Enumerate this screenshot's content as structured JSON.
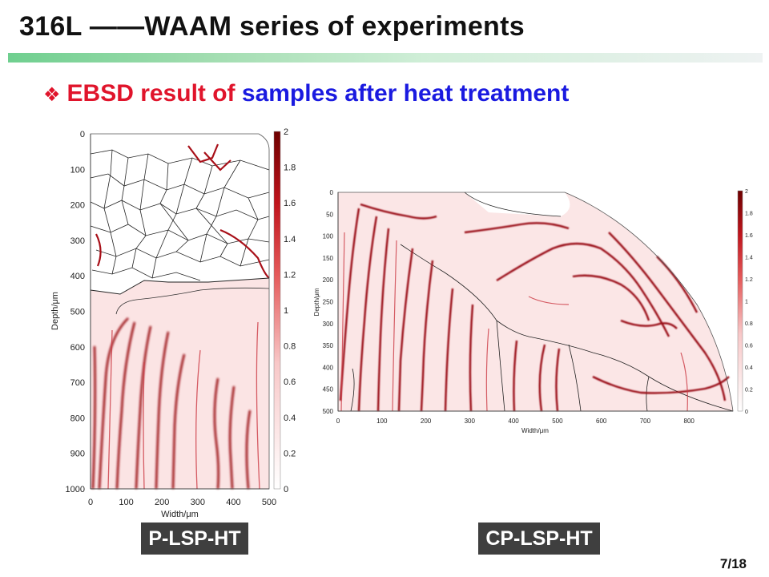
{
  "header": {
    "title": "316L ——WAAM series of experiments",
    "colors": {
      "bar_start": "#6fcf8f",
      "bar_end": "#eef2f2"
    }
  },
  "subtitle": {
    "bullet_icon": "diamond-bullet-icon",
    "part1": "EBSD result of",
    "part2": "samples after heat treatment",
    "colors": {
      "part1": "#e0142b",
      "part2": "#1a1ae0"
    }
  },
  "maps": [
    {
      "caption": "P-LSP-HT",
      "x_label": "Width/μm",
      "y_label": "Depth/μm",
      "x_ticks": [
        "0",
        "100",
        "200",
        "300",
        "400",
        "500"
      ],
      "y_ticks": [
        "0",
        "100",
        "200",
        "300",
        "400",
        "500",
        "600",
        "700",
        "800",
        "900",
        "1000"
      ],
      "colorbar_ticks": [
        "2",
        "1.8",
        "1.6",
        "1.4",
        "1.2",
        "1",
        "0.8",
        "0.6",
        "0.4",
        "0.2",
        "0"
      ]
    },
    {
      "caption": "CP-LSP-HT",
      "x_label": "Width/μm",
      "y_label": "Depth/μm",
      "x_ticks": [
        "0",
        "100",
        "200",
        "300",
        "400",
        "500",
        "600",
        "700",
        "800"
      ],
      "y_ticks": [
        "0",
        "50",
        "100",
        "150",
        "200",
        "250",
        "300",
        "350",
        "400",
        "450",
        "500"
      ],
      "colorbar_ticks": [
        "2",
        "1.8",
        "1.6",
        "1.4",
        "1.2",
        "1",
        "0.8",
        "0.6",
        "0.4",
        "0.2",
        "0"
      ]
    }
  ],
  "footer": {
    "page": "7/18"
  },
  "colormap": {
    "low": "#ffffff",
    "high": "#7a0000",
    "boundary": "#b4101c"
  }
}
